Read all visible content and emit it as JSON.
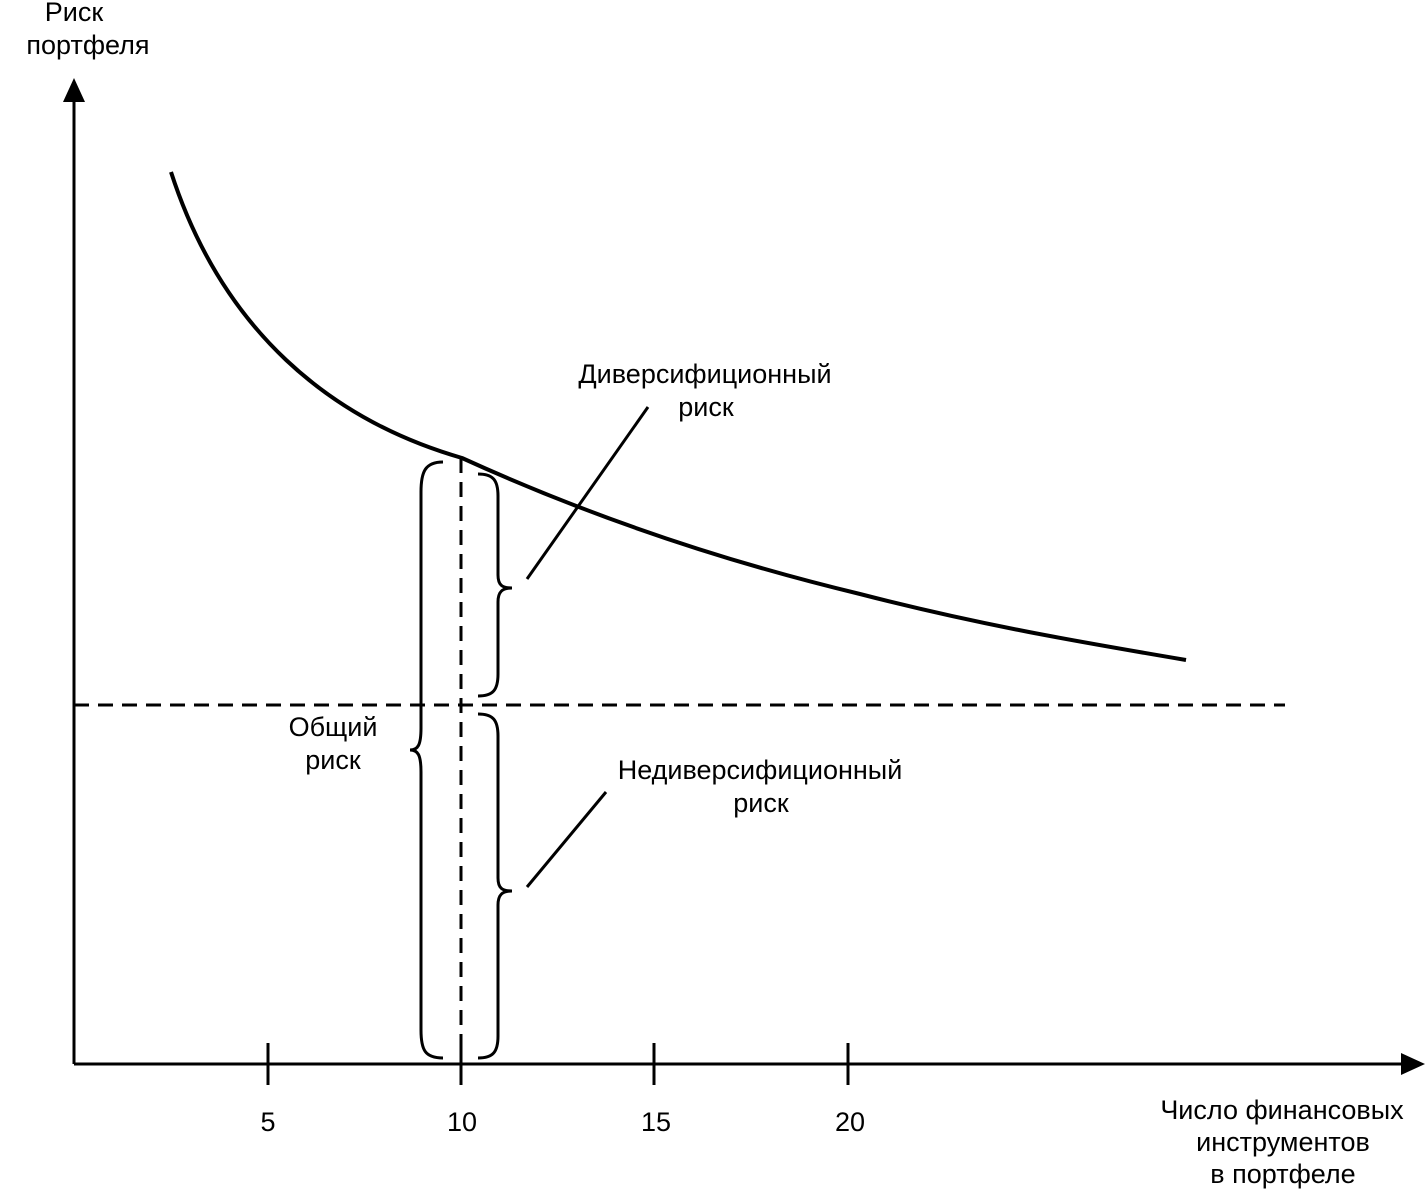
{
  "y_axis_label": [
    "Риск",
    "портфеля"
  ],
  "x_axis_label": [
    "Число финансовых",
    "инструментов",
    "в портфеле"
  ],
  "x_ticks": [
    "5",
    "10",
    "15",
    "20"
  ],
  "annotations": {
    "diversifiable": [
      "Диверсифиционный",
      "риск"
    ],
    "non_diversifiable": [
      "Недиверсифиционный",
      "риск"
    ],
    "total": [
      "Общий",
      "риск"
    ]
  },
  "colors": {
    "line": "#000000",
    "background": "#ffffff"
  }
}
